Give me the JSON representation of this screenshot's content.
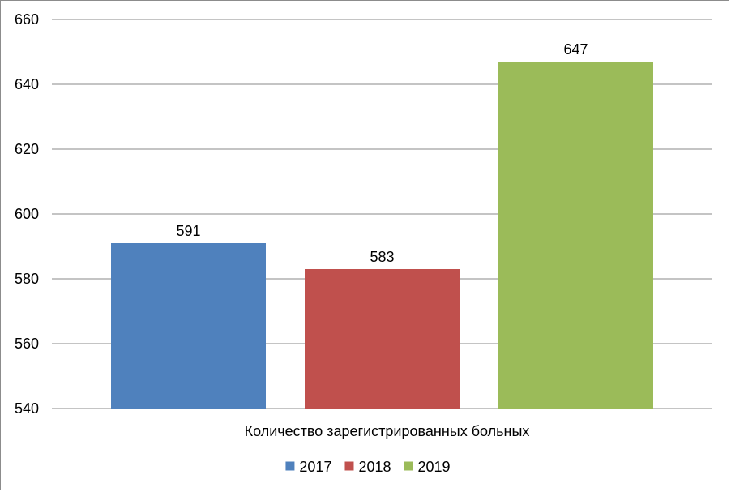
{
  "chart_data": {
    "type": "bar",
    "categories": [
      "Количество зарегистрированных больных"
    ],
    "series": [
      {
        "name": "2017",
        "values": [
          591
        ],
        "color": "#4F81BD"
      },
      {
        "name": "2018",
        "values": [
          583
        ],
        "color": "#C0504D"
      },
      {
        "name": "2019",
        "values": [
          647
        ],
        "color": "#9BBB59"
      }
    ],
    "ylim": [
      540,
      660
    ],
    "yticks": [
      540,
      560,
      580,
      600,
      620,
      640,
      660
    ],
    "grid": true,
    "legend_position": "bottom",
    "data_labels": true
  }
}
